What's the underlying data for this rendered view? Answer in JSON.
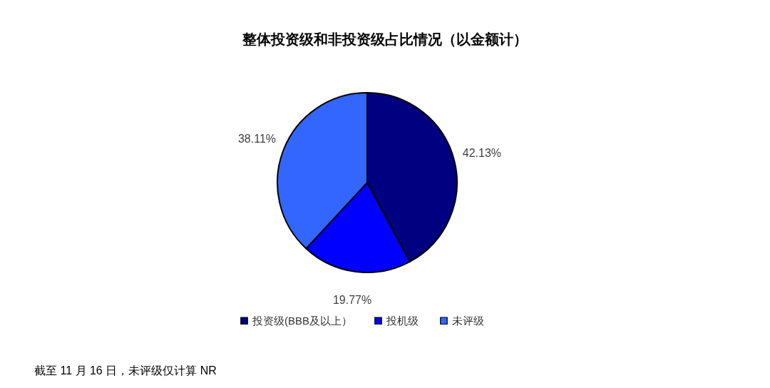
{
  "chart_data": {
    "type": "pie",
    "title": "整体投资级和非投资级占比情况（以金额计）",
    "categories": [
      "投资级(BBB及以上）",
      "投机级",
      "未评级"
    ],
    "values": [
      42.13,
      19.77,
      38.11
    ],
    "colors": [
      "#000080",
      "#0000ff",
      "#3366ff"
    ],
    "value_labels": [
      "42.13%",
      "19.77%",
      "38.11%"
    ],
    "legend": "bottom",
    "annotations": [
      "截至 11 月 16 日，未评级仅计算 NR"
    ]
  }
}
